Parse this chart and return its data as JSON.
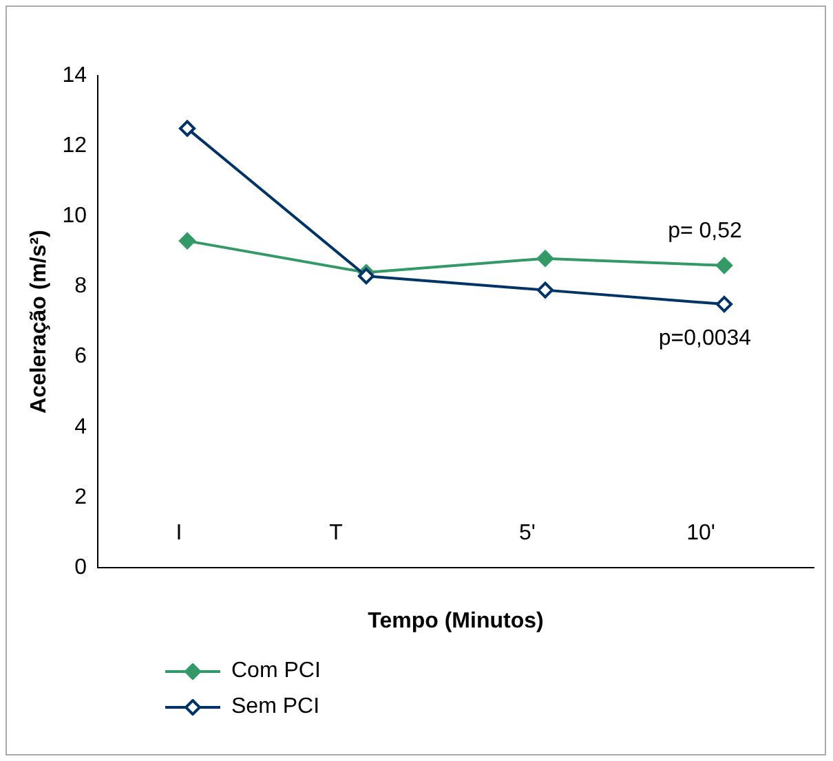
{
  "chart_data": {
    "type": "line",
    "xlabel": "Tempo (Minutos)",
    "ylabel": "Aceleração (m/s²)",
    "categories": [
      null,
      null,
      null,
      null
    ],
    "series": [
      {
        "name": "Com PCI",
        "color": "#339966",
        "values": [
          9.3,
          8.4,
          8.8,
          8.6
        ],
        "marker": "diamond"
      },
      {
        "name": "Sem PCI",
        "color": "#003366",
        "values": [
          12.5,
          8.3,
          7.9,
          7.5
        ],
        "marker": "diamond"
      }
    ],
    "ylim": [
      0,
      14
    ],
    "yticks": [
      0,
      2,
      4,
      6,
      8,
      10,
      12,
      14
    ],
    "grid": false,
    "legend": "bottom left",
    "annotations": [
      "I",
      "T",
      "5'",
      "10'",
      "p= 0,52",
      "p=0,0034"
    ]
  }
}
